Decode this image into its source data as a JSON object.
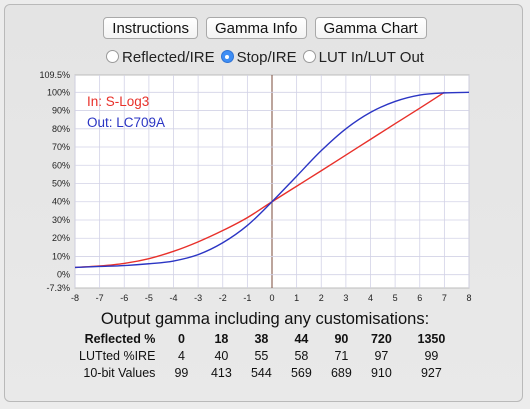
{
  "buttons": {
    "instructions": "Instructions",
    "gamma_info": "Gamma Info",
    "gamma_chart": "Gamma Chart"
  },
  "radios": [
    {
      "label": "Reflected/IRE",
      "selected": false
    },
    {
      "label": "Stop/IRE",
      "selected": true
    },
    {
      "label": "LUT In/LUT Out",
      "selected": false
    }
  ],
  "chart_data": {
    "type": "line",
    "in_label": "In: S-Log3",
    "out_label": "Out: LC709A",
    "x_ticks": [
      "-8",
      "-7",
      "-6",
      "-5",
      "-4",
      "-3",
      "-2",
      "-1",
      "0",
      "1",
      "2",
      "3",
      "4",
      "5",
      "6",
      "7",
      "8"
    ],
    "y_ticks": [
      "109.5%",
      "100%",
      "90%",
      "80%",
      "70%",
      "60%",
      "50%",
      "40%",
      "30%",
      "20%",
      "10%",
      "0%",
      "-7.3%"
    ],
    "xlim": [
      -8,
      8
    ],
    "ylim": [
      -7.3,
      109.5
    ],
    "grid": true,
    "series": [
      {
        "name": "In: S-Log3",
        "color": "#e8302a",
        "x": [
          -8,
          -7,
          -6,
          -5,
          -4,
          -3,
          -2,
          -1,
          0,
          1,
          2,
          3,
          4,
          5,
          6,
          7
        ],
        "y": [
          4.0,
          4.8,
          6.2,
          8.8,
          12.8,
          18.0,
          24.2,
          31.3,
          40.0,
          48.5,
          57.0,
          65.6,
          74.2,
          82.8,
          91.3,
          100.0
        ]
      },
      {
        "name": "Out: LC709A",
        "color": "#2b35c4",
        "x": [
          -8,
          -7,
          -6,
          -5,
          -4,
          -3,
          -2,
          -1,
          0,
          1,
          2,
          3,
          4,
          5,
          6,
          7,
          8
        ],
        "y": [
          4.0,
          4.5,
          5.0,
          6.0,
          7.5,
          11.0,
          17.5,
          27.0,
          40.0,
          54.0,
          68.0,
          80.0,
          89.0,
          95.0,
          98.5,
          99.7,
          100.0
        ]
      }
    ]
  },
  "output": {
    "title": "Output gamma including any customisations:",
    "reflected_label": "Reflected %",
    "reflected": [
      "0",
      "18",
      "38",
      "44",
      "90",
      "720",
      "1350"
    ],
    "lutted_label": "LUTted %IRE",
    "lutted": [
      "4",
      "40",
      "55",
      "58",
      "71",
      "97",
      "99"
    ],
    "bit10_label": "10-bit Values",
    "bit10": [
      "99",
      "413",
      "544",
      "569",
      "689",
      "910",
      "927"
    ]
  },
  "colors": {
    "red": "#e8302a",
    "blue": "#2b35c4",
    "accent": "#3e8ef5"
  }
}
